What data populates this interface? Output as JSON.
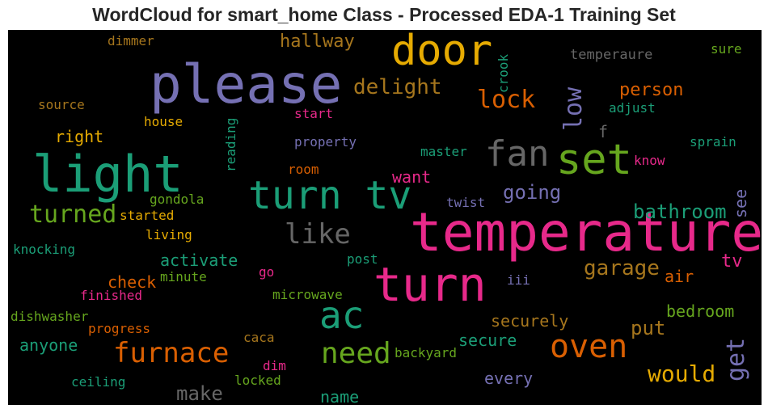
{
  "chart_data": {
    "type": "wordcloud",
    "title": "WordCloud for smart_home Class - Processed EDA-1 Training Set",
    "background": "#000000",
    "colormap": "Dark2",
    "words": [
      {
        "text": "temperature",
        "color": "#e7298a"
      },
      {
        "text": "please",
        "color": "#7570b3"
      },
      {
        "text": "light",
        "color": "#1b9e77"
      },
      {
        "text": "turn",
        "color": "#e7298a"
      },
      {
        "text": "turn tv",
        "color": "#1b9e77"
      },
      {
        "text": "door",
        "color": "#e6ab02"
      },
      {
        "text": "set",
        "color": "#66a61e"
      },
      {
        "text": "fan",
        "color": "#666666"
      },
      {
        "text": "ac",
        "color": "#1b9e77"
      },
      {
        "text": "oven",
        "color": "#d95f02"
      },
      {
        "text": "need",
        "color": "#66a61e"
      },
      {
        "text": "furnace",
        "color": "#d95f02"
      },
      {
        "text": "like",
        "color": "#666666"
      },
      {
        "text": "turned",
        "color": "#66a61e"
      },
      {
        "text": "lock",
        "color": "#d95f02"
      },
      {
        "text": "delight",
        "color": "#a6761d"
      },
      {
        "text": "low",
        "color": "#7570b3"
      },
      {
        "text": "would",
        "color": "#e6ab02"
      },
      {
        "text": "get",
        "color": "#7570b3"
      },
      {
        "text": "garage",
        "color": "#a6761d"
      },
      {
        "text": "bathroom",
        "color": "#1b9e77"
      },
      {
        "text": "going",
        "color": "#7570b3"
      },
      {
        "text": "put",
        "color": "#a6761d"
      },
      {
        "text": "make",
        "color": "#666666"
      },
      {
        "text": "hallway",
        "color": "#a6761d"
      },
      {
        "text": "person",
        "color": "#d95f02"
      },
      {
        "text": "tv",
        "color": "#e7298a"
      },
      {
        "text": "securely",
        "color": "#a6761d"
      },
      {
        "text": "bedroom",
        "color": "#66a61e"
      },
      {
        "text": "activate",
        "color": "#1b9e77"
      },
      {
        "text": "check",
        "color": "#d95f02"
      },
      {
        "text": "right",
        "color": "#e6ab02"
      },
      {
        "text": "secure",
        "color": "#1b9e77"
      },
      {
        "text": "want",
        "color": "#e7298a"
      },
      {
        "text": "anyone",
        "color": "#1b9e77"
      },
      {
        "text": "every",
        "color": "#7570b3"
      },
      {
        "text": "air",
        "color": "#d95f02"
      },
      {
        "text": "name",
        "color": "#1b9e77"
      },
      {
        "text": "see",
        "color": "#7570b3"
      },
      {
        "text": "temperaure",
        "color": "#666666"
      },
      {
        "text": "dimmer",
        "color": "#a6761d"
      },
      {
        "text": "crook",
        "color": "#1b9e77"
      },
      {
        "text": "sure",
        "color": "#66a61e"
      },
      {
        "text": "source",
        "color": "#a6761d"
      },
      {
        "text": "adjust",
        "color": "#1b9e77"
      },
      {
        "text": "start",
        "color": "#e7298a"
      },
      {
        "text": "house",
        "color": "#e6ab02"
      },
      {
        "text": "f",
        "color": "#666666"
      },
      {
        "text": "reading",
        "color": "#1b9e77"
      },
      {
        "text": "property",
        "color": "#7570b3"
      },
      {
        "text": "sprain",
        "color": "#1b9e77"
      },
      {
        "text": "master",
        "color": "#1b9e77"
      },
      {
        "text": "know",
        "color": "#e7298a"
      },
      {
        "text": "room",
        "color": "#d95f02"
      },
      {
        "text": "gondola",
        "color": "#66a61e"
      },
      {
        "text": "twist",
        "color": "#7570b3"
      },
      {
        "text": "started",
        "color": "#e6ab02"
      },
      {
        "text": "living",
        "color": "#e6ab02"
      },
      {
        "text": "knocking",
        "color": "#1b9e77"
      },
      {
        "text": "post",
        "color": "#1b9e77"
      },
      {
        "text": "go",
        "color": "#e7298a"
      },
      {
        "text": "minute",
        "color": "#66a61e"
      },
      {
        "text": "iii",
        "color": "#7570b3"
      },
      {
        "text": "finished",
        "color": "#e7298a"
      },
      {
        "text": "microwave",
        "color": "#66a61e"
      },
      {
        "text": "dishwasher",
        "color": "#66a61e"
      },
      {
        "text": "progress",
        "color": "#d95f02"
      },
      {
        "text": "caca",
        "color": "#a6761d"
      },
      {
        "text": "backyard",
        "color": "#66a61e"
      },
      {
        "text": "dim",
        "color": "#e7298a"
      },
      {
        "text": "ceiling",
        "color": "#1b9e77"
      },
      {
        "text": "locked",
        "color": "#66a61e"
      }
    ]
  }
}
